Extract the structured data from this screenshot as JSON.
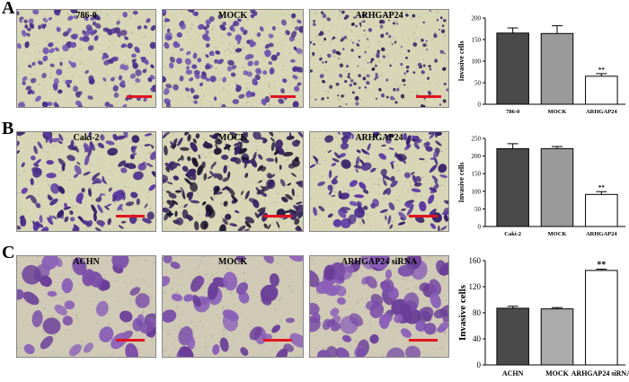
{
  "panels": [
    {
      "letter": "A",
      "images": [
        "786-0",
        "MOCK",
        "ARHGAP24"
      ],
      "chart_data": {
        "type": "bar",
        "categories": [
          "786-0",
          "MOCK",
          "ARHGAP24"
        ],
        "values": [
          165,
          164,
          65
        ],
        "errors": [
          12,
          18,
          6
        ],
        "annotations": [
          "",
          "",
          "**"
        ],
        "ylabel": "Invasive cells",
        "ylim": [
          0,
          200
        ],
        "yticks": [
          "0",
          "50",
          "100",
          "150",
          "200"
        ],
        "bar_colors": [
          "#4a4a4a",
          "#9a9a9a",
          "#ffffff"
        ]
      }
    },
    {
      "letter": "B",
      "images": [
        "Caki-2",
        "MOCK",
        "ARHGAP24"
      ],
      "chart_data": {
        "type": "bar",
        "categories": [
          "Caki-2",
          "MOCK",
          "ARHGAP24"
        ],
        "values": [
          221,
          221,
          91
        ],
        "errors": [
          14,
          6,
          8
        ],
        "annotations": [
          "",
          "",
          "**"
        ],
        "ylabel": "Invasive cells",
        "ylim": [
          0,
          250
        ],
        "yticks": [
          "0",
          "50",
          "100",
          "150",
          "200",
          "250"
        ],
        "bar_colors": [
          "#4a4a4a",
          "#9a9a9a",
          "#ffffff"
        ]
      }
    },
    {
      "letter": "C",
      "images": [
        "ACHN",
        "MOCK",
        "ARHGAP24 siRNA"
      ],
      "chart_data": {
        "type": "bar",
        "categories": [
          "ACHN",
          "MOCK",
          "ARHGAP24 siRNA"
        ],
        "values": [
          87,
          86,
          145
        ],
        "errors": [
          3,
          2,
          2
        ],
        "annotations": [
          "",
          "",
          "**"
        ],
        "ylabel": "Invasive cells",
        "ylim": [
          0,
          160
        ],
        "yticks": [
          "0",
          "40",
          "80",
          "120",
          "160"
        ],
        "bar_colors": [
          "#4a4a4a",
          "#ababab",
          "#ffffff"
        ]
      }
    }
  ],
  "colors": {
    "stain": "#5a3a9a",
    "background_light": "#d6d3b8",
    "scale_bar": "#e0141e"
  }
}
